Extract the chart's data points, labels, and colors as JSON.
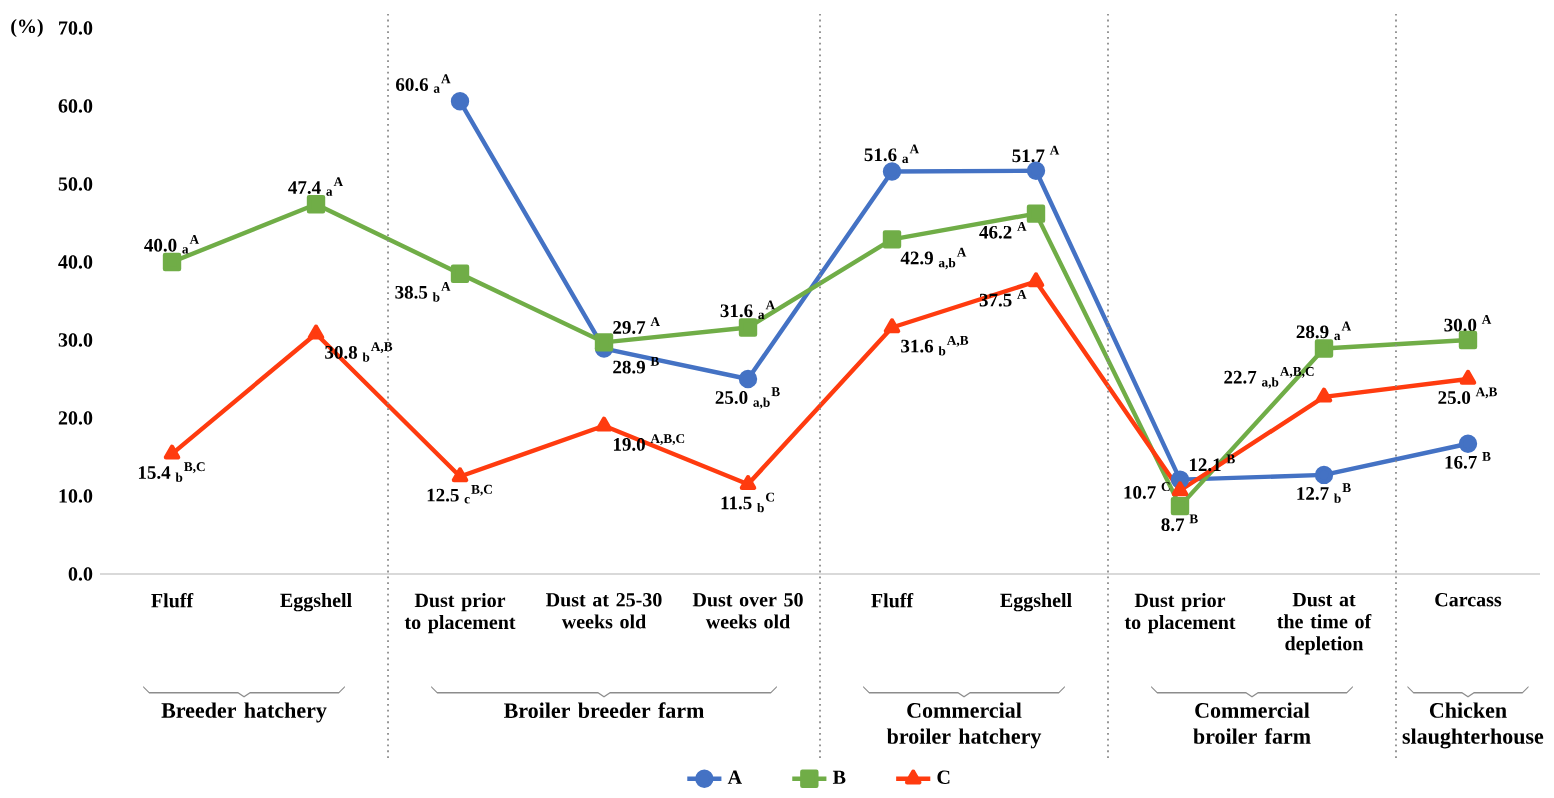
{
  "chart_data": {
    "type": "line",
    "ylabel": "(%)",
    "categories": [
      "Fluff",
      "Eggshell",
      "Dust prior to placement",
      "Dust at 25-30 weeks old",
      "Dust over 50 weeks old",
      "Fluff",
      "Eggshell",
      "Dust prior to placement",
      "Dust at the time of depletion",
      "Carcass"
    ],
    "ylim": [
      0,
      70
    ],
    "yticks": [
      {
        "value": 0,
        "label": "0.0"
      },
      {
        "value": 10,
        "label": "10.0"
      },
      {
        "value": 20,
        "label": "20.0"
      },
      {
        "value": 30,
        "label": "30.0"
      },
      {
        "value": 40,
        "label": "40.0"
      },
      {
        "value": 50,
        "label": "50.0"
      },
      {
        "value": 60,
        "label": "60.0"
      },
      {
        "value": 70,
        "label": "70.0"
      }
    ],
    "legend": "bottom",
    "series": [
      {
        "name": "A",
        "color": "#4472c4",
        "marker": "circle",
        "values": [
          null,
          null,
          60.6,
          28.9,
          25.0,
          51.6,
          51.7,
          12.1,
          12.7,
          16.7
        ],
        "value_labels": [
          null,
          null,
          "60.6 $_{a}$$^{A}$",
          "28.9 $^{B}$",
          "25.0 $_{a,b}$$^{B}$",
          "51.6 $_{a}$$^{A}$",
          "51.7 $^{A}$",
          "12.1 $^{B}$",
          "12.7 $_{b}$$^{B}$",
          "16.7 $^{B}$"
        ]
      },
      {
        "name": "B",
        "color": "#70ad47",
        "marker": "square",
        "values": [
          40.0,
          47.4,
          38.5,
          29.7,
          31.6,
          42.9,
          46.2,
          8.7,
          28.9,
          30.0
        ],
        "value_labels": [
          "40.0 $_{a}$$^{A}$",
          "47.4 $_{a}$$^{A}$",
          "38.5 $_{b}$$^{A}$",
          "29.7 $^{A}$",
          "31.6 $_{a}$$^{A}$",
          "42.9 $_{a,b}$$^{A}$",
          "46.2 $^{A}$",
          "8.7 $^{B}$",
          "28.9 $_{a}$$^{A}$",
          "30.0 $^{A}$"
        ]
      },
      {
        "name": "C",
        "color": "#ff3b0f",
        "marker": "triangle",
        "values": [
          15.4,
          30.8,
          12.5,
          19.0,
          11.5,
          31.6,
          37.5,
          10.7,
          22.7,
          25.0
        ],
        "value_labels": [
          "15.4 $_{b}$$^{B,C}$",
          "30.8 $_{b}$$^{A,B}$",
          "12.5 $_{c}$$^{B,C}$",
          "19.0 $^{A,B,C}$",
          "11.5 $_{b}$$^{C}$",
          "31.6 $_{b}$$^{A,B}$",
          "37.5 $^{A}$",
          "10.7 $^{C}$",
          "22.7 $_{a,b}$$^{A,B,C}$",
          "25.0 $^{A,B}$"
        ]
      }
    ],
    "annotations": [
      "Breeder hatchery",
      "Broiler breeder farm",
      "Commercial broiler hatchery",
      "Commercial broiler farm",
      "Chicken slaughterhouse"
    ]
  }
}
